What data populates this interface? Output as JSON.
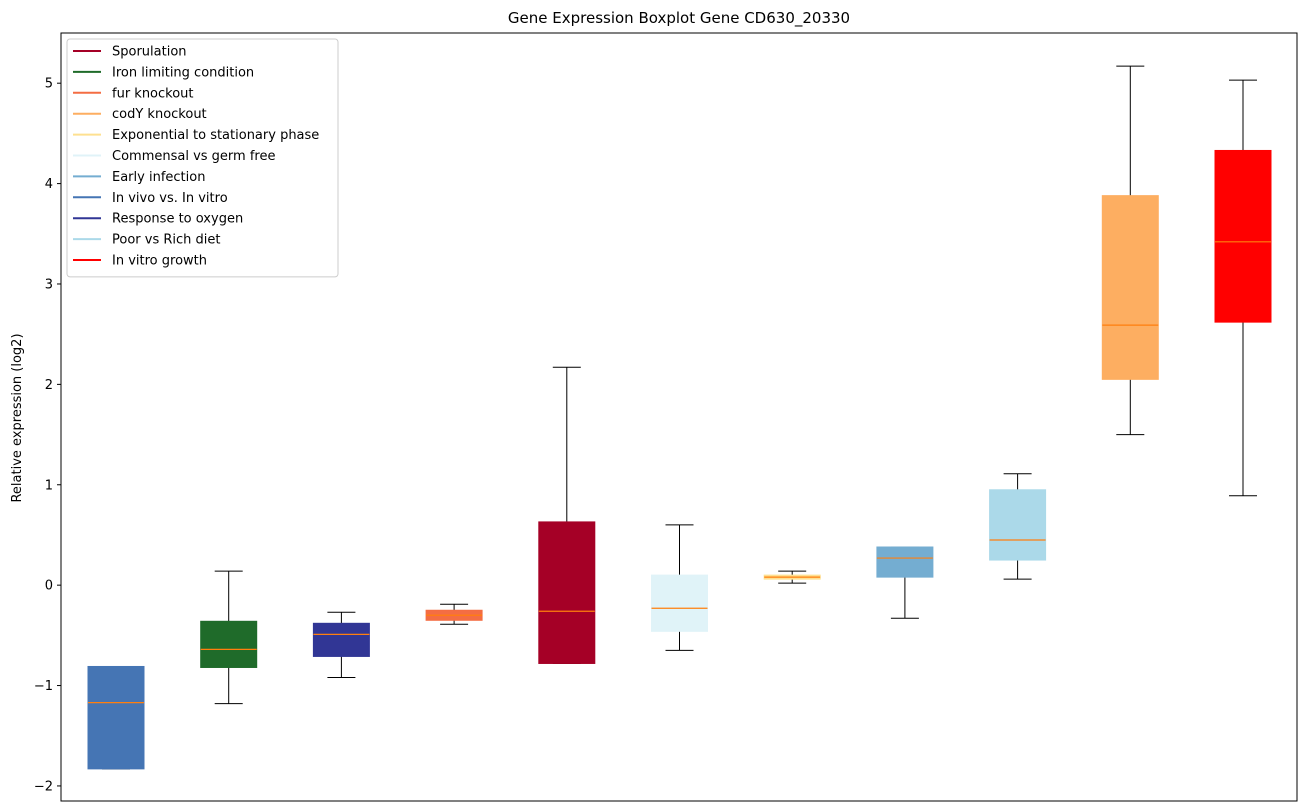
{
  "chart_data": {
    "type": "boxplot",
    "title": "Gene Expression Boxplot Gene CD630_20330",
    "xlabel": "",
    "ylabel": "Relative expression (log2)",
    "ylim": [
      -2.15,
      5.5
    ],
    "yticks": [
      -2,
      -1,
      0,
      1,
      2,
      3,
      4,
      5
    ],
    "ytick_labels": [
      "−2",
      "−1",
      "0",
      "1",
      "2",
      "3",
      "4",
      "5"
    ],
    "median_color": "#ff7f0e",
    "legend_position": "upper-left",
    "legend": [
      {
        "label": "Sporulation",
        "color": "#a50026"
      },
      {
        "label": "Iron limiting condition",
        "color": "#1f6b2a"
      },
      {
        "label": "fur knockout",
        "color": "#f46d43"
      },
      {
        "label": "codY knockout",
        "color": "#fdae61"
      },
      {
        "label": "Exponential to stationary phase",
        "color": "#fee090"
      },
      {
        "label": "Commensal vs germ free",
        "color": "#e0f3f8"
      },
      {
        "label": "Early infection",
        "color": "#74add1"
      },
      {
        "label": "In vivo vs. In vitro",
        "color": "#4575b4"
      },
      {
        "label": "Response to oxygen",
        "color": "#313695"
      },
      {
        "label": "Poor vs Rich diet",
        "color": "#abd9e9"
      },
      {
        "label": "In vitro growth",
        "color": "#ff0000"
      }
    ],
    "boxes": [
      {
        "group": "In vivo vs. In vitro",
        "color": "#4575b4",
        "whisker_low": -1.83,
        "q1": -1.83,
        "median": -1.17,
        "q3": -0.81,
        "whisker_high": -0.81
      },
      {
        "group": "Iron limiting condition",
        "color": "#1f6b2a",
        "whisker_low": -1.18,
        "q1": -0.82,
        "median": -0.64,
        "q3": -0.36,
        "whisker_high": 0.14
      },
      {
        "group": "Response to oxygen",
        "color": "#313695",
        "whisker_low": -0.92,
        "q1": -0.71,
        "median": -0.49,
        "q3": -0.38,
        "whisker_high": -0.27
      },
      {
        "group": "fur knockout",
        "color": "#f46d43",
        "whisker_low": -0.39,
        "q1": -0.35,
        "median": -0.3,
        "q3": -0.25,
        "whisker_high": -0.19
      },
      {
        "group": "Sporulation",
        "color": "#a50026",
        "whisker_low": -0.78,
        "q1": -0.78,
        "median": -0.26,
        "q3": 0.63,
        "whisker_high": 2.17
      },
      {
        "group": "Commensal vs germ free",
        "color": "#e0f3f8",
        "whisker_low": -0.65,
        "q1": -0.46,
        "median": -0.23,
        "q3": 0.1,
        "whisker_high": 0.6
      },
      {
        "group": "Exponential to stationary phase",
        "color": "#fee090",
        "whisker_low": 0.02,
        "q1": 0.06,
        "median": 0.08,
        "q3": 0.1,
        "whisker_high": 0.14
      },
      {
        "group": "Early infection",
        "color": "#74add1",
        "whisker_low": -0.33,
        "q1": 0.08,
        "median": 0.27,
        "q3": 0.38,
        "whisker_high": 0.38
      },
      {
        "group": "Poor vs Rich diet",
        "color": "#abd9e9",
        "whisker_low": 0.06,
        "q1": 0.25,
        "median": 0.45,
        "q3": 0.95,
        "whisker_high": 1.11
      },
      {
        "group": "codY knockout",
        "color": "#fdae61",
        "whisker_low": 1.5,
        "q1": 2.05,
        "median": 2.59,
        "q3": 3.88,
        "whisker_high": 5.17
      },
      {
        "group": "In vitro growth",
        "color": "#ff0000",
        "whisker_low": 0.89,
        "q1": 2.62,
        "median": 3.42,
        "q3": 4.33,
        "whisker_high": 5.03
      }
    ]
  }
}
